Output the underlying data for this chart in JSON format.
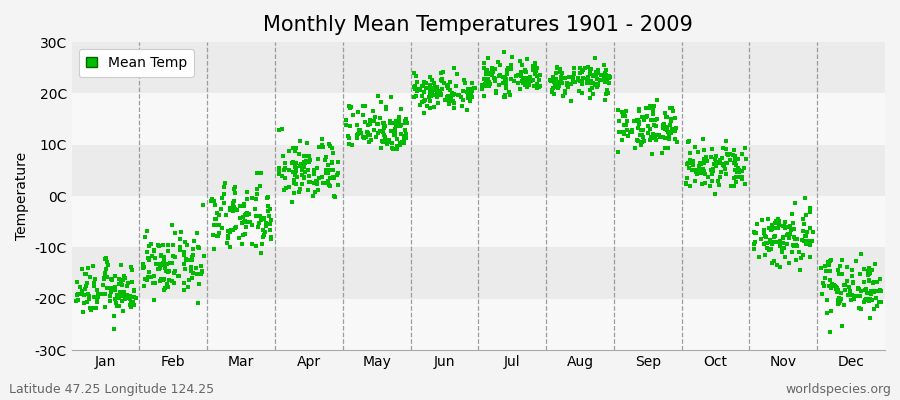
{
  "title": "Monthly Mean Temperatures 1901 - 2009",
  "ylabel": "Temperature",
  "ylim": [
    -30,
    30
  ],
  "ytick_labels": [
    "-30C",
    "-20C",
    "-10C",
    "0C",
    "10C",
    "20C",
    "30C"
  ],
  "ytick_values": [
    -30,
    -20,
    -10,
    0,
    10,
    20,
    30
  ],
  "months": [
    "Jan",
    "Feb",
    "Mar",
    "Apr",
    "May",
    "Jun",
    "Jul",
    "Aug",
    "Sep",
    "Oct",
    "Nov",
    "Dec"
  ],
  "month_means": [
    -18.5,
    -13.5,
    -4.5,
    5.0,
    13.5,
    20.5,
    23.0,
    22.5,
    13.5,
    5.5,
    -8.0,
    -17.5
  ],
  "month_stds": [
    2.5,
    3.0,
    3.5,
    3.0,
    2.5,
    1.8,
    1.5,
    1.5,
    2.2,
    2.5,
    3.0,
    2.8
  ],
  "n_years": 109,
  "dot_color": "#00bb00",
  "dot_size": 6,
  "background_color": "#f4f4f4",
  "plot_bg_color": "#ebebeb",
  "alt_band_color": "#f8f8f8",
  "dashed_line_color": "#888888",
  "title_fontsize": 15,
  "axis_label_fontsize": 10,
  "tick_fontsize": 10,
  "legend_label": "Mean Temp",
  "footer_left": "Latitude 47.25 Longitude 124.25",
  "footer_right": "worldspecies.org",
  "footer_fontsize": 9,
  "seed": 12345
}
